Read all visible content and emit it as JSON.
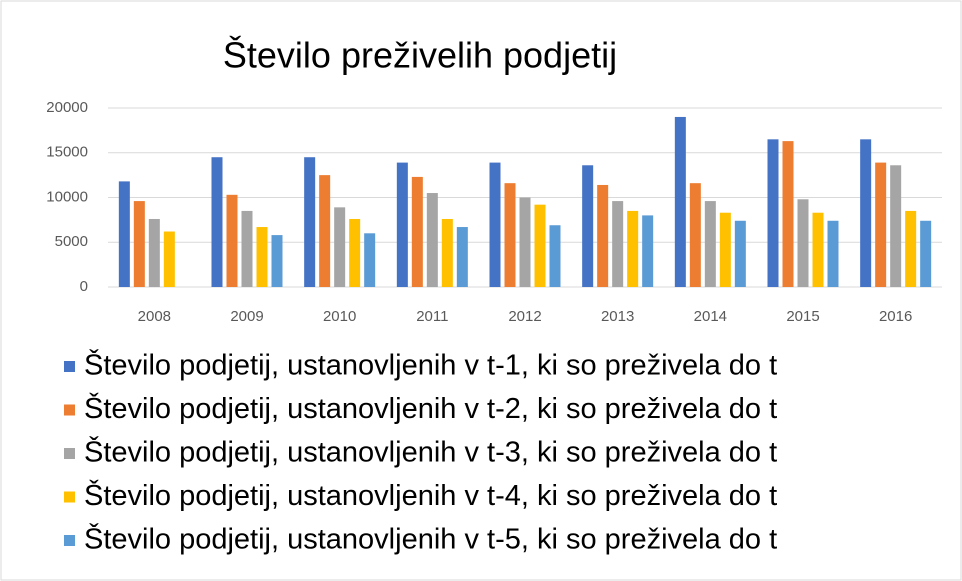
{
  "chart_data": {
    "type": "bar",
    "title": "Število preživelih podjetij",
    "categories": [
      "2008",
      "2009",
      "2010",
      "2011",
      "2012",
      "2013",
      "2014",
      "2015",
      "2016"
    ],
    "series": [
      {
        "name": "Število podjetij, ustanovljenih v t-1, ki so preživela do t",
        "color": "#4472c4",
        "values": [
          11800,
          14500,
          14500,
          13900,
          13900,
          13600,
          19000,
          16500,
          16500
        ]
      },
      {
        "name": "Število podjetij, ustanovljenih v t-2, ki so preživela do t",
        "color": "#ed7d31",
        "values": [
          9600,
          10300,
          12500,
          12300,
          11600,
          11400,
          11600,
          16300,
          13900
        ]
      },
      {
        "name": "Število podjetij, ustanovljenih v t-3, ki so preživela do t",
        "color": "#a5a5a5",
        "values": [
          7600,
          8500,
          8900,
          10500,
          10000,
          9600,
          9600,
          9800,
          13600
        ]
      },
      {
        "name": "Število podjetij, ustanovljenih v t-4, ki so preživela do t",
        "color": "#ffc000",
        "values": [
          6200,
          6700,
          7600,
          7600,
          9200,
          8500,
          8300,
          8300,
          8500
        ]
      },
      {
        "name": "Število podjetij, ustanovljenih v t-5, ki so preživela do t",
        "color": "#5b9bd5",
        "values": [
          null,
          5800,
          6000,
          6700,
          6900,
          8000,
          7400,
          7400,
          7400
        ]
      }
    ],
    "ylim": [
      0,
      20000
    ],
    "yticks": [
      0,
      5000,
      10000,
      15000,
      20000
    ],
    "grid": true,
    "legend": "bottom"
  }
}
